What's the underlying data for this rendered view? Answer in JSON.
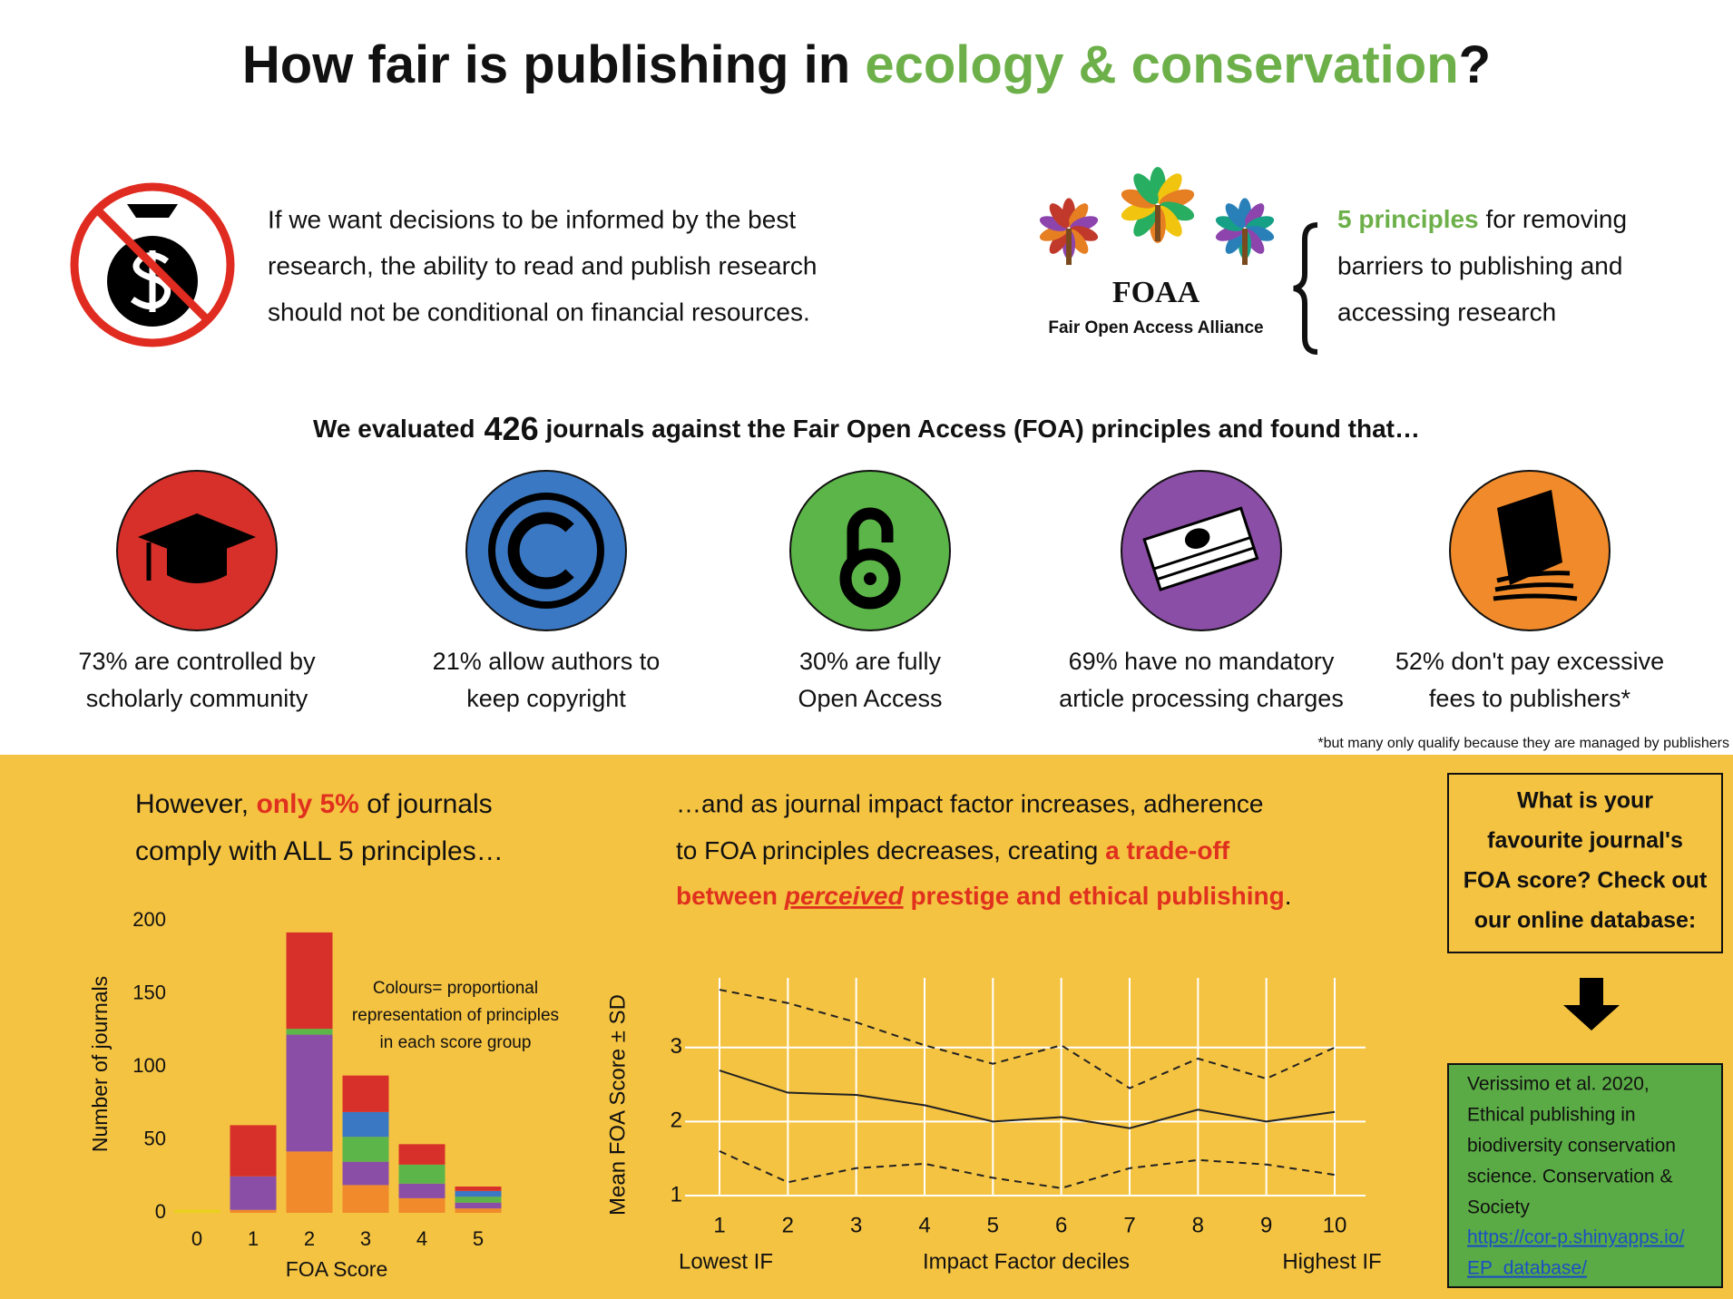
{
  "header": {
    "title_start": "How fair is publishing in",
    "title_highlight": "ecology & conservation",
    "title_end": "?"
  },
  "intro": {
    "lines": [
      "If we want decisions to be informed by the best",
      "research, the ability to read and publish research",
      "should not be conditional on financial resources."
    ]
  },
  "foaa": {
    "name": "FOAA",
    "subtitle": "Fair Open Access Alliance",
    "principles_highlight": "5 principles",
    "principles_lines": [
      "for removing",
      "barriers to publishing and",
      "accessing research"
    ]
  },
  "evaluation": {
    "prefix": "We evaluated",
    "count": 426,
    "suffix": "journals against the Fair Open Access (FOA) principles and found that…"
  },
  "findings": [
    {
      "color": "#d7302a",
      "lines": [
        "73% are controlled by",
        "scholarly community"
      ]
    },
    {
      "color": "#3b78c3",
      "lines": [
        "21% allow authors to",
        "keep copyright"
      ]
    },
    {
      "color": "#5cb548",
      "lines": [
        "30% are fully",
        "Open Access"
      ]
    },
    {
      "color": "#8b4ea6",
      "lines": [
        "69% have no mandatory",
        "article processing charges"
      ]
    },
    {
      "color": "#f08a2a",
      "lines": [
        "52% don't pay excessive",
        "fees to publishers*"
      ]
    }
  ],
  "footnote": "*but many only qualify because they are managed by publishers",
  "compliance": {
    "prefix": "However,",
    "highlight": "only 5%",
    "suffix": "of journals",
    "line2": "comply with ALL 5 principles…"
  },
  "trade_off": {
    "line1": "…and as journal impact factor increases, adherence",
    "line2": "to FOA principles decreases, creating",
    "line2_highlight": "a trade-off",
    "line3_start": "between",
    "line3_italic": "perceived",
    "line3_rest": "prestige and ethical publishing",
    "line3_end": "."
  },
  "database": {
    "question_lines": [
      "What is your",
      "favourite journal's",
      "FOA score? Check out",
      "our online database:"
    ],
    "citation_lines": [
      "Verissimo et al. 2020,",
      "Ethical publishing in",
      "biodiversity conservation",
      "science. Conservation &",
      "Society"
    ],
    "link_lines": [
      "https://cor-p.shinyapps.io/",
      "EP_database/"
    ]
  },
  "chart_data": [
    {
      "type": "bar",
      "stacked": true,
      "categories": [
        "0",
        "1",
        "2",
        "3",
        "4",
        "5"
      ],
      "series": [
        {
          "color": "#e8d21c",
          "values": [
            2,
            0,
            0,
            0,
            0,
            0
          ]
        },
        {
          "color": "#f08a2a",
          "values": [
            0,
            2,
            42,
            19,
            10,
            3
          ]
        },
        {
          "color": "#8b4ea6",
          "values": [
            0,
            23,
            80,
            16,
            10,
            4
          ]
        },
        {
          "color": "#5cb548",
          "values": [
            0,
            0,
            4,
            17,
            13,
            4
          ]
        },
        {
          "color": "#3b78c3",
          "values": [
            0,
            0,
            0,
            17,
            0,
            4
          ]
        },
        {
          "color": "#d7302a",
          "values": [
            0,
            35,
            66,
            25,
            14,
            3
          ]
        }
      ],
      "ylim": [
        0,
        200
      ],
      "yticks": [
        0,
        50,
        100,
        150,
        200
      ],
      "y_label": "Number of journals",
      "x_label": "FOA Score",
      "annotation": [
        "Colours= proportional",
        "representation of principles",
        "in each score group"
      ]
    },
    {
      "type": "line",
      "x": [
        1,
        2,
        3,
        4,
        5,
        6,
        7,
        8,
        9,
        10
      ],
      "series": [
        {
          "color": "#222222",
          "line_style": "solid",
          "values": [
            2.69,
            2.39,
            2.36,
            2.22,
            2.0,
            2.06,
            1.91,
            2.16,
            2.0,
            2.13
          ]
        },
        {
          "color": "#222222",
          "line_style": "dashed",
          "values": [
            3.78,
            3.6,
            3.34,
            3.03,
            2.78,
            3.03,
            2.45,
            2.85,
            2.58,
            3.0
          ]
        },
        {
          "color": "#222222",
          "line_style": "dashed",
          "values": [
            1.6,
            1.18,
            1.37,
            1.43,
            1.24,
            1.1,
            1.37,
            1.48,
            1.42,
            1.28
          ]
        }
      ],
      "xlim": [
        1,
        10
      ],
      "xticks": [
        1,
        2,
        3,
        4,
        5,
        6,
        7,
        8,
        9,
        10
      ],
      "ylim": [
        1,
        3.94
      ],
      "yticks": [
        1,
        2,
        3
      ],
      "grid": true,
      "y_label": "Mean FOA Score ± SD",
      "x_label": "Impact Factor deciles",
      "x_end_labels": [
        "Lowest IF",
        "Highest IF"
      ]
    }
  ]
}
